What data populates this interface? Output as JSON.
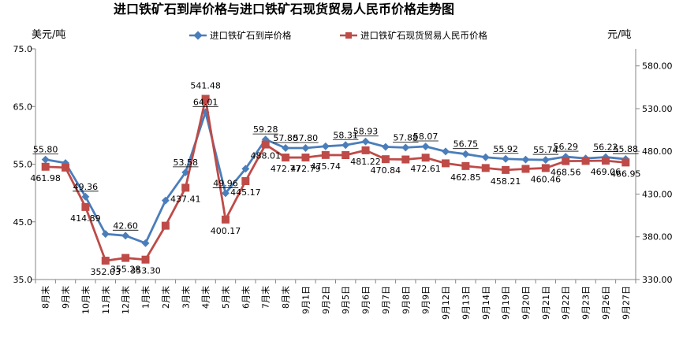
{
  "chart_data": {
    "type": "line",
    "title": "进口铁矿石到岸价格与进口铁矿石现货贸易人民币价格走势图",
    "left_unit": "美元/吨",
    "right_unit": "元/吨",
    "categories": [
      "8月末",
      "9月末",
      "10月末",
      "11月末",
      "12月末",
      "1月末",
      "2月末",
      "3月末",
      "4月末",
      "5月末",
      "6月末",
      "7月末",
      "8月末",
      "9月1日",
      "9月2日",
      "9月5日",
      "9月6日",
      "9月7日",
      "9月8日",
      "9月9日",
      "9月12日",
      "9月13日",
      "9月14日",
      "9月19日",
      "9月20日",
      "9月21日",
      "9月22日",
      "9月23日",
      "9月26日",
      "9月27日"
    ],
    "y_left": {
      "min": 35,
      "max": 75,
      "ticks": [
        "35.0",
        "45.0",
        "55.0",
        "65.0",
        "75.0"
      ]
    },
    "y_right": {
      "min": 330,
      "max": 600,
      "ticks": [
        "330.00",
        "380.00",
        "430.00",
        "480.00",
        "530.00",
        "580.00"
      ]
    },
    "grid": false,
    "legend_position": "top",
    "series": [
      {
        "name": "进口铁矿石到岸价格",
        "axis": "left",
        "color": "#4a7ebb",
        "marker": "diamond",
        "values": [
          55.8,
          55.2,
          49.36,
          42.9,
          42.6,
          41.3,
          48.7,
          53.58,
          64.01,
          49.96,
          54.2,
          59.28,
          57.8,
          57.8,
          58.1,
          58.31,
          58.93,
          58.0,
          57.88,
          58.07,
          57.2,
          56.75,
          56.2,
          55.92,
          55.8,
          55.74,
          56.29,
          56.0,
          56.22,
          55.88
        ],
        "labels": [
          "55.80",
          "",
          "49.36",
          "",
          "42.60",
          "",
          "",
          "53.58",
          "64.01",
          "49.96",
          "",
          "59.28",
          "57.80",
          "57.80",
          "",
          "58.31",
          "58.93",
          "",
          "57.88",
          "58.07",
          "",
          "56.75",
          "",
          "55.92",
          "",
          "55.74",
          "56.29",
          "",
          "56.22",
          "55.88"
        ]
      },
      {
        "name": "进口铁矿石现货贸易人民币价格",
        "axis": "right",
        "color": "#be4b48",
        "marker": "square",
        "values": [
          461.98,
          461.0,
          414.89,
          352.03,
          355.28,
          353.3,
          393.0,
          437.41,
          541.48,
          400.17,
          445.17,
          488.01,
          472.77,
          472.79,
          475.74,
          475.6,
          481.22,
          470.84,
          470.5,
          472.61,
          466.0,
          462.85,
          460.5,
          458.21,
          459.5,
          460.46,
          468.56,
          468.8,
          469.06,
          466.95
        ],
        "labels": [
          "461.98",
          "",
          "414.89",
          "352.03",
          "355.28",
          "353.30",
          "",
          "437.41",
          "541.48",
          "400.17",
          "445.17",
          "488.01",
          "472.77",
          "472.79",
          "475.74",
          "",
          "481.22",
          "470.84",
          "",
          "472.61",
          "",
          "462.85",
          "",
          "458.21",
          "",
          "460.46",
          "468.56",
          "",
          "469.06",
          "466.95"
        ]
      }
    ]
  }
}
